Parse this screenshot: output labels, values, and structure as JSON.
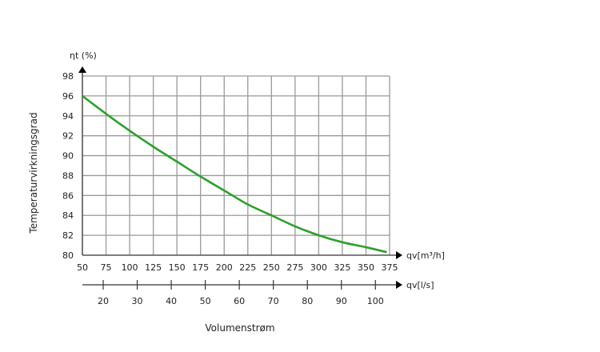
{
  "chart_data": {
    "type": "line",
    "title": "",
    "ylabel": "Temperaturvirkningsgrad",
    "y_unit_label": "ηt (%)",
    "xlabel": "Volumenstrøm",
    "x_unit_label": "qv[m³/h]",
    "x2_unit_label": "qv[l/s]",
    "xlim": [
      50,
      375
    ],
    "ylim": [
      80,
      98
    ],
    "grid": true,
    "x_ticks": [
      "50",
      "75",
      "100",
      "125",
      "150",
      "175",
      "200",
      "225",
      "250",
      "275",
      "300",
      "325",
      "350",
      "375"
    ],
    "y_ticks": [
      "80",
      "82",
      "84",
      "86",
      "88",
      "90",
      "92",
      "94",
      "96",
      "98"
    ],
    "x2_ticks": [
      "20",
      "30",
      "40",
      "50",
      "60",
      "70",
      "80",
      "90",
      "100"
    ],
    "x2_ticks_values_ls": [
      20,
      30,
      40,
      50,
      60,
      70,
      80,
      90,
      100
    ],
    "series": [
      {
        "name": "Temperaturvirkningsgrad",
        "color": "#2ca02c",
        "x": [
          50,
          75,
          100,
          125,
          150,
          175,
          200,
          225,
          250,
          275,
          300,
          325,
          350,
          372
        ],
        "y": [
          96.0,
          94.2,
          92.5,
          90.9,
          89.4,
          87.9,
          86.5,
          85.1,
          84.0,
          82.9,
          82.0,
          81.3,
          80.8,
          80.3
        ]
      }
    ]
  }
}
